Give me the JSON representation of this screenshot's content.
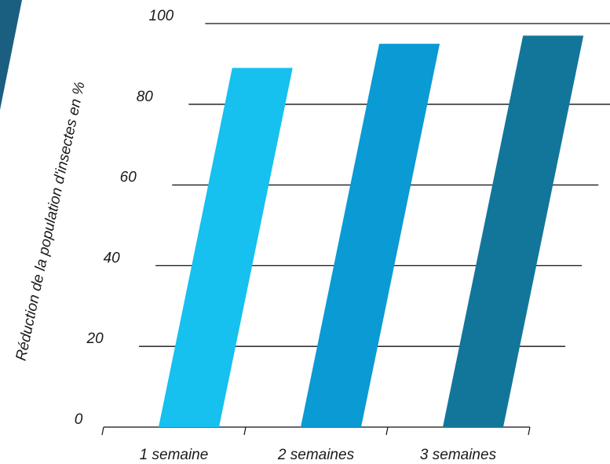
{
  "chart_data": {
    "type": "bar",
    "categories": [
      "1 semaine",
      "2 semaines",
      "3 semaines"
    ],
    "values": [
      89,
      95,
      97
    ],
    "ylabel": "Réduction de la population d'insectes en %",
    "xlabel": "",
    "ylim": [
      0,
      100
    ],
    "yticks": [
      "0",
      "20",
      "40",
      "60",
      "80",
      "100"
    ],
    "grid": true,
    "bar_colors": [
      "#16c0ef",
      "#0a9ad4",
      "#12769b"
    ],
    "accent_color": "#1a5f80"
  }
}
